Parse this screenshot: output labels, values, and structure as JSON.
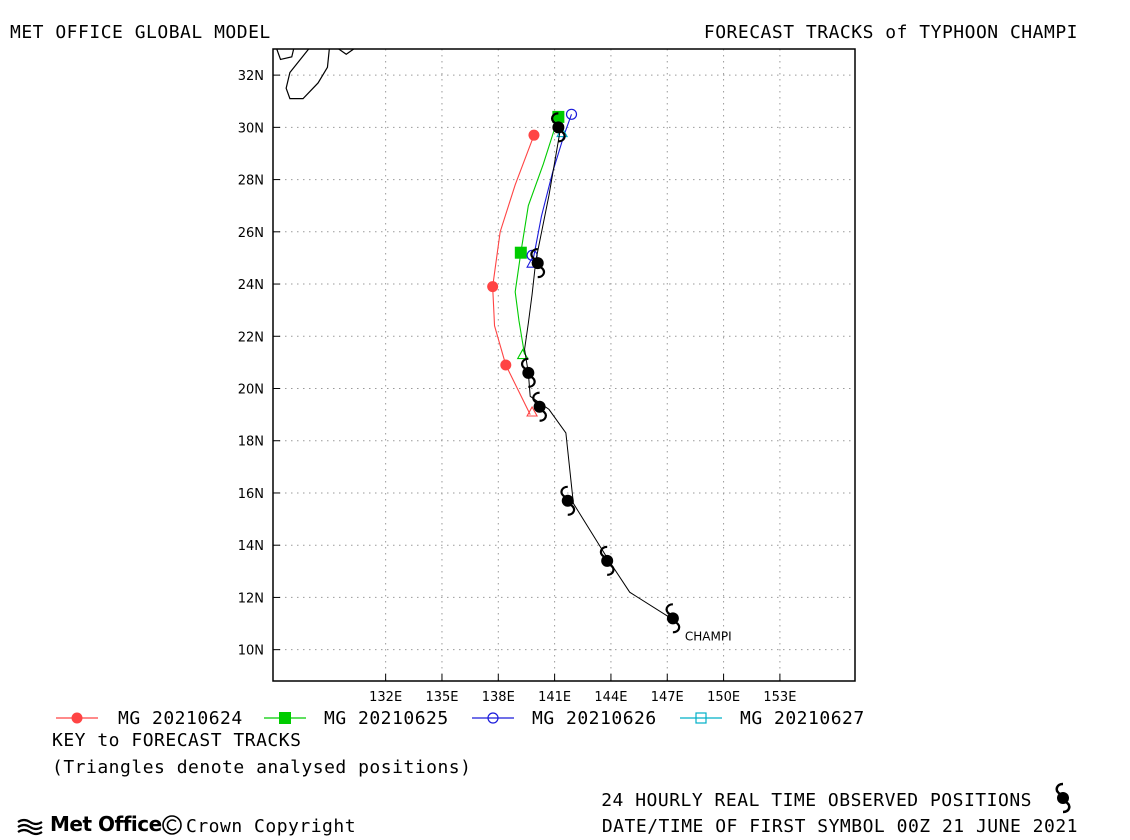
{
  "header": {
    "left_title": "MET OFFICE GLOBAL MODEL",
    "right_title": "FORECAST TRACKS of TYPHOON CHAMPI"
  },
  "map": {
    "lon_range": [
      126,
      157
    ],
    "lat_range": [
      8.8,
      33
    ],
    "lat_ticks": [
      {
        "value": 32,
        "label": "32N"
      },
      {
        "value": 30,
        "label": "30N"
      },
      {
        "value": 28,
        "label": "28N"
      },
      {
        "value": 26,
        "label": "26N"
      },
      {
        "value": 24,
        "label": "24N"
      },
      {
        "value": 22,
        "label": "22N"
      },
      {
        "value": 20,
        "label": "20N"
      },
      {
        "value": 18,
        "label": "18N"
      },
      {
        "value": 16,
        "label": "16N"
      },
      {
        "value": 14,
        "label": "14N"
      },
      {
        "value": 12,
        "label": "12N"
      },
      {
        "value": 10,
        "label": "10N"
      }
    ],
    "lon_ticks": [
      {
        "value": 132,
        "label": "132E"
      },
      {
        "value": 135,
        "label": "135E"
      },
      {
        "value": 138,
        "label": "138E"
      },
      {
        "value": 141,
        "label": "141E"
      },
      {
        "value": 144,
        "label": "144E"
      },
      {
        "value": 147,
        "label": "147E"
      },
      {
        "value": 150,
        "label": "150E"
      },
      {
        "value": 153,
        "label": "153E"
      }
    ],
    "grid": true,
    "storm_label": "CHAMPI",
    "coastline": [
      [
        [
          126.2,
          33
        ],
        [
          126.4,
          32.6
        ],
        [
          127.0,
          32.7
        ],
        [
          127.1,
          33
        ]
      ],
      [
        [
          127.9,
          33
        ],
        [
          126.9,
          32.1
        ],
        [
          126.7,
          31.5
        ],
        [
          126.9,
          31.1
        ],
        [
          127.6,
          31.1
        ],
        [
          128.4,
          31.7
        ],
        [
          128.9,
          32.3
        ],
        [
          129.0,
          33
        ]
      ],
      [
        [
          129.5,
          33
        ],
        [
          129.9,
          32.8
        ],
        [
          130.3,
          33
        ]
      ]
    ]
  },
  "observed_track": {
    "color": "#000000",
    "path": [
      [
        147.2,
        11.2
      ],
      [
        145.0,
        12.2
      ],
      [
        143.9,
        13.4
      ],
      [
        142.0,
        15.6
      ],
      [
        141.6,
        18.3
      ],
      [
        140.7,
        19.2
      ],
      [
        139.7,
        19.7
      ],
      [
        139.6,
        20.6
      ],
      [
        139.4,
        21.5
      ],
      [
        139.6,
        22.5
      ],
      [
        139.8,
        23.6
      ],
      [
        140.0,
        24.9
      ],
      [
        140.7,
        27.4
      ],
      [
        141.3,
        29.9
      ]
    ],
    "symbols": [
      [
        147.3,
        11.2
      ],
      [
        143.8,
        13.4
      ],
      [
        141.7,
        15.7
      ],
      [
        140.2,
        19.3
      ],
      [
        139.6,
        20.6
      ],
      [
        140.1,
        24.8
      ],
      [
        141.2,
        30.0
      ]
    ]
  },
  "forecasts": [
    {
      "name": "MG 20210624",
      "color": "#ff4444",
      "marker": "filled-circle",
      "path": [
        [
          139.7,
          19.0
        ],
        [
          138.4,
          20.9
        ],
        [
          137.8,
          22.4
        ],
        [
          137.7,
          23.9
        ],
        [
          138.1,
          26.0
        ],
        [
          138.9,
          27.8
        ],
        [
          139.9,
          29.7
        ]
      ],
      "markers": [
        [
          138.4,
          20.9
        ],
        [
          137.7,
          23.9
        ],
        [
          139.9,
          29.7
        ]
      ],
      "analysis_triangle": [
        139.8,
        19.1
      ]
    },
    {
      "name": "MG 20210625",
      "color": "#00cc00",
      "marker": "filled-square",
      "path": [
        [
          139.4,
          21.3
        ],
        [
          139.1,
          22.6
        ],
        [
          138.9,
          23.7
        ],
        [
          139.2,
          25.2
        ],
        [
          139.6,
          27.0
        ],
        [
          140.4,
          28.6
        ],
        [
          141.2,
          30.4
        ]
      ],
      "markers": [
        [
          139.2,
          25.2
        ],
        [
          141.2,
          30.4
        ]
      ],
      "analysis_triangle": [
        139.3,
        21.3
      ]
    },
    {
      "name": "MG 20210626",
      "color": "#1a1adb",
      "marker": "open-circle",
      "path": [
        [
          139.8,
          24.8
        ],
        [
          139.9,
          25.1
        ],
        [
          140.3,
          26.6
        ],
        [
          140.9,
          28.3
        ],
        [
          141.5,
          29.7
        ],
        [
          141.9,
          30.5
        ]
      ],
      "markers": [
        [
          139.8,
          25.1
        ],
        [
          141.9,
          30.5
        ]
      ],
      "analysis_triangle": [
        139.8,
        24.8
      ]
    },
    {
      "name": "MG 20210627",
      "color": "#00b0c8",
      "marker": "open-square",
      "path": [
        [
          141.3,
          29.8
        ],
        [
          141.4,
          29.9
        ]
      ],
      "markers": [],
      "analysis_triangle": [
        141.4,
        29.8
      ]
    }
  ],
  "legend": {
    "key_title": "KEY to FORECAST TRACKS",
    "triangles_note": "(Triangles denote analysed positions)"
  },
  "footer": {
    "observed_positions": "24 HOURLY REAL TIME OBSERVED POSITIONS",
    "first_symbol": "DATE/TIME OF FIRST SYMBOL 00Z 21 JUNE 2021",
    "logo_text": "Met Office",
    "copyright": "Crown Copyright"
  }
}
